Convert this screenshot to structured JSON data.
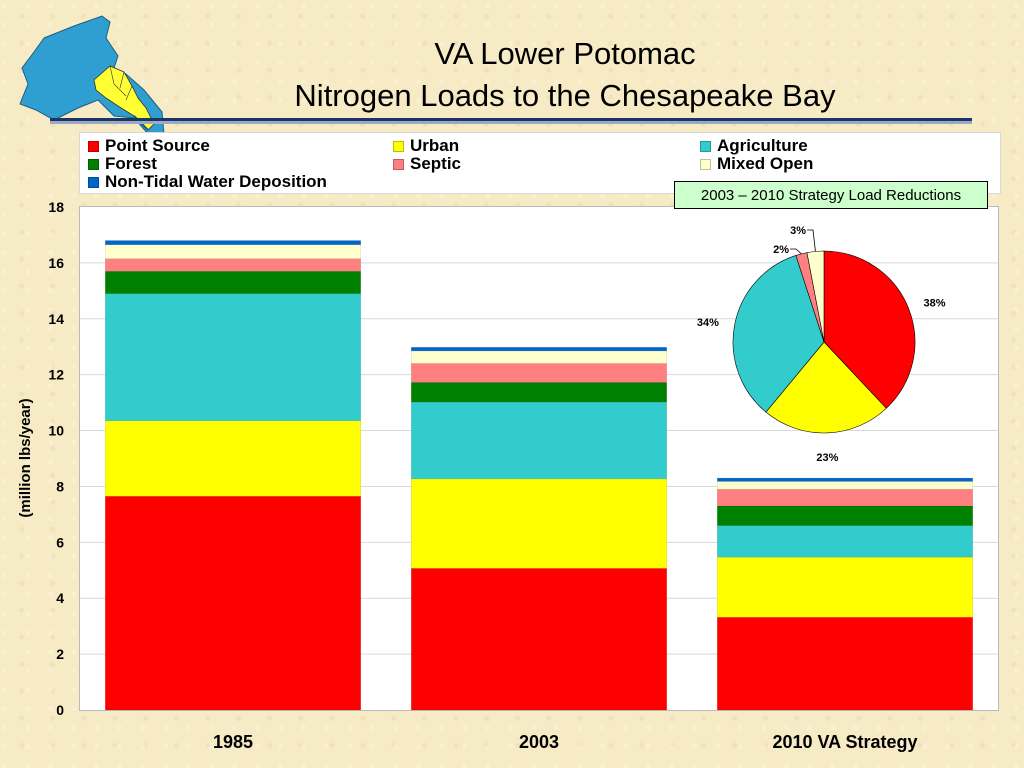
{
  "title": {
    "line1": "VA Lower Potomac",
    "line2": "Nitrogen Loads to the Chesapeake Bay"
  },
  "chart_data": [
    {
      "type": "bar",
      "stacked": true,
      "categories": [
        "1985",
        "2003",
        "2010 VA Strategy"
      ],
      "series": [
        {
          "name": "Point Source",
          "color": "#ff0000",
          "values": [
            7.65,
            5.07,
            3.32
          ]
        },
        {
          "name": "Urban",
          "color": "#ffff00",
          "values": [
            2.7,
            3.2,
            2.15
          ]
        },
        {
          "name": "Agriculture",
          "color": "#33cccc",
          "values": [
            4.55,
            2.75,
            1.13
          ]
        },
        {
          "name": "Forest",
          "color": "#008000",
          "values": [
            0.8,
            0.7,
            0.7
          ]
        },
        {
          "name": "Septic",
          "color": "#ff8080",
          "values": [
            0.45,
            0.68,
            0.6
          ]
        },
        {
          "name": "Mixed Open",
          "color": "#ffffcc",
          "values": [
            0.5,
            0.45,
            0.28
          ]
        },
        {
          "name": "Non-Tidal Water Deposition",
          "color": "#0066cc",
          "values": [
            0.15,
            0.13,
            0.12
          ]
        }
      ],
      "ylabel": "(million lbs/year)",
      "ylim": [
        0,
        18
      ],
      "yticks": [
        0,
        2,
        4,
        6,
        8,
        10,
        12,
        14,
        16,
        18
      ],
      "grid": true,
      "legend": "top"
    },
    {
      "type": "pie",
      "title": "2003 – 2010 Strategy Load Reductions",
      "slices": [
        {
          "name": "Point Source",
          "color": "#ff0000",
          "value": 38,
          "label": "38%"
        },
        {
          "name": "Urban",
          "color": "#ffff00",
          "value": 23,
          "label": "23%"
        },
        {
          "name": "Agriculture",
          "color": "#33cccc",
          "value": 34,
          "label": "34%"
        },
        {
          "name": "Septic",
          "color": "#ff8080",
          "value": 2,
          "label": "2%"
        },
        {
          "name": "Mixed Open",
          "color": "#ffffcc",
          "value": 3,
          "label": "3%"
        }
      ]
    }
  ],
  "colors": {
    "background": "#f7ebc6",
    "title_rule": "#1c3563",
    "inset_box": "#ccffcc",
    "map_water": "#2e9fd0",
    "map_highlight": "#ffff33"
  }
}
